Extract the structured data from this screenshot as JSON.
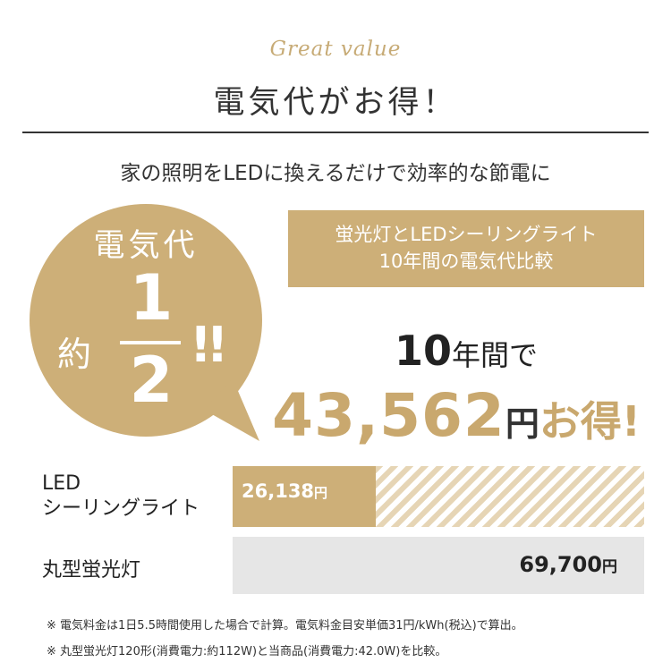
{
  "header": {
    "tagline": "Great value",
    "title": "電気代がお得！",
    "subtitle": "家の照明をLEDに換えるだけで効率的な節電に"
  },
  "bubble": {
    "top_text": "電気代",
    "approx": "約",
    "numerator": "1",
    "denominator": "2",
    "exclaim": "!!"
  },
  "comparison_box": {
    "line1": "蛍光灯とLEDシーリングライト",
    "line2": "10年間の電気代比較"
  },
  "headline": {
    "years_num": "10",
    "years_label": "年間",
    "de": "で",
    "amount": "43,562",
    "yen": "円",
    "otoku": "お得!"
  },
  "bars": {
    "led": {
      "label_line1": "LED",
      "label_line2": "シーリングライト",
      "value": "26,138",
      "unit": "円"
    },
    "fluorescent": {
      "label": "丸型蛍光灯",
      "value": "69,700",
      "unit": "円"
    }
  },
  "notes": [
    "※ 電気料金は1日5.5時間使用した場合で計算。電気料金目安単価31円/kWh(税込)で算出。",
    "※ 丸型蛍光灯120形(消費電力:約112W)と当商品(消費電力:42.0W)を比較。"
  ],
  "colors": {
    "accent": "#cdaf78",
    "stripe": "#e6d5b5",
    "gray_bar": "#e6e6e6"
  }
}
